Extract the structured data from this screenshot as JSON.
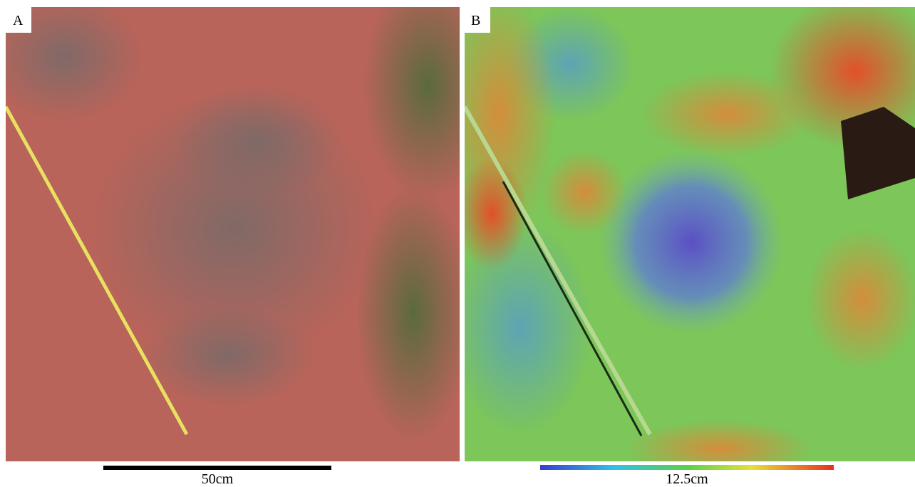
{
  "panels": [
    {
      "label": "A",
      "scale_bar": "50cm"
    },
    {
      "label": "B",
      "scale_bar": "12.5cm"
    }
  ]
}
